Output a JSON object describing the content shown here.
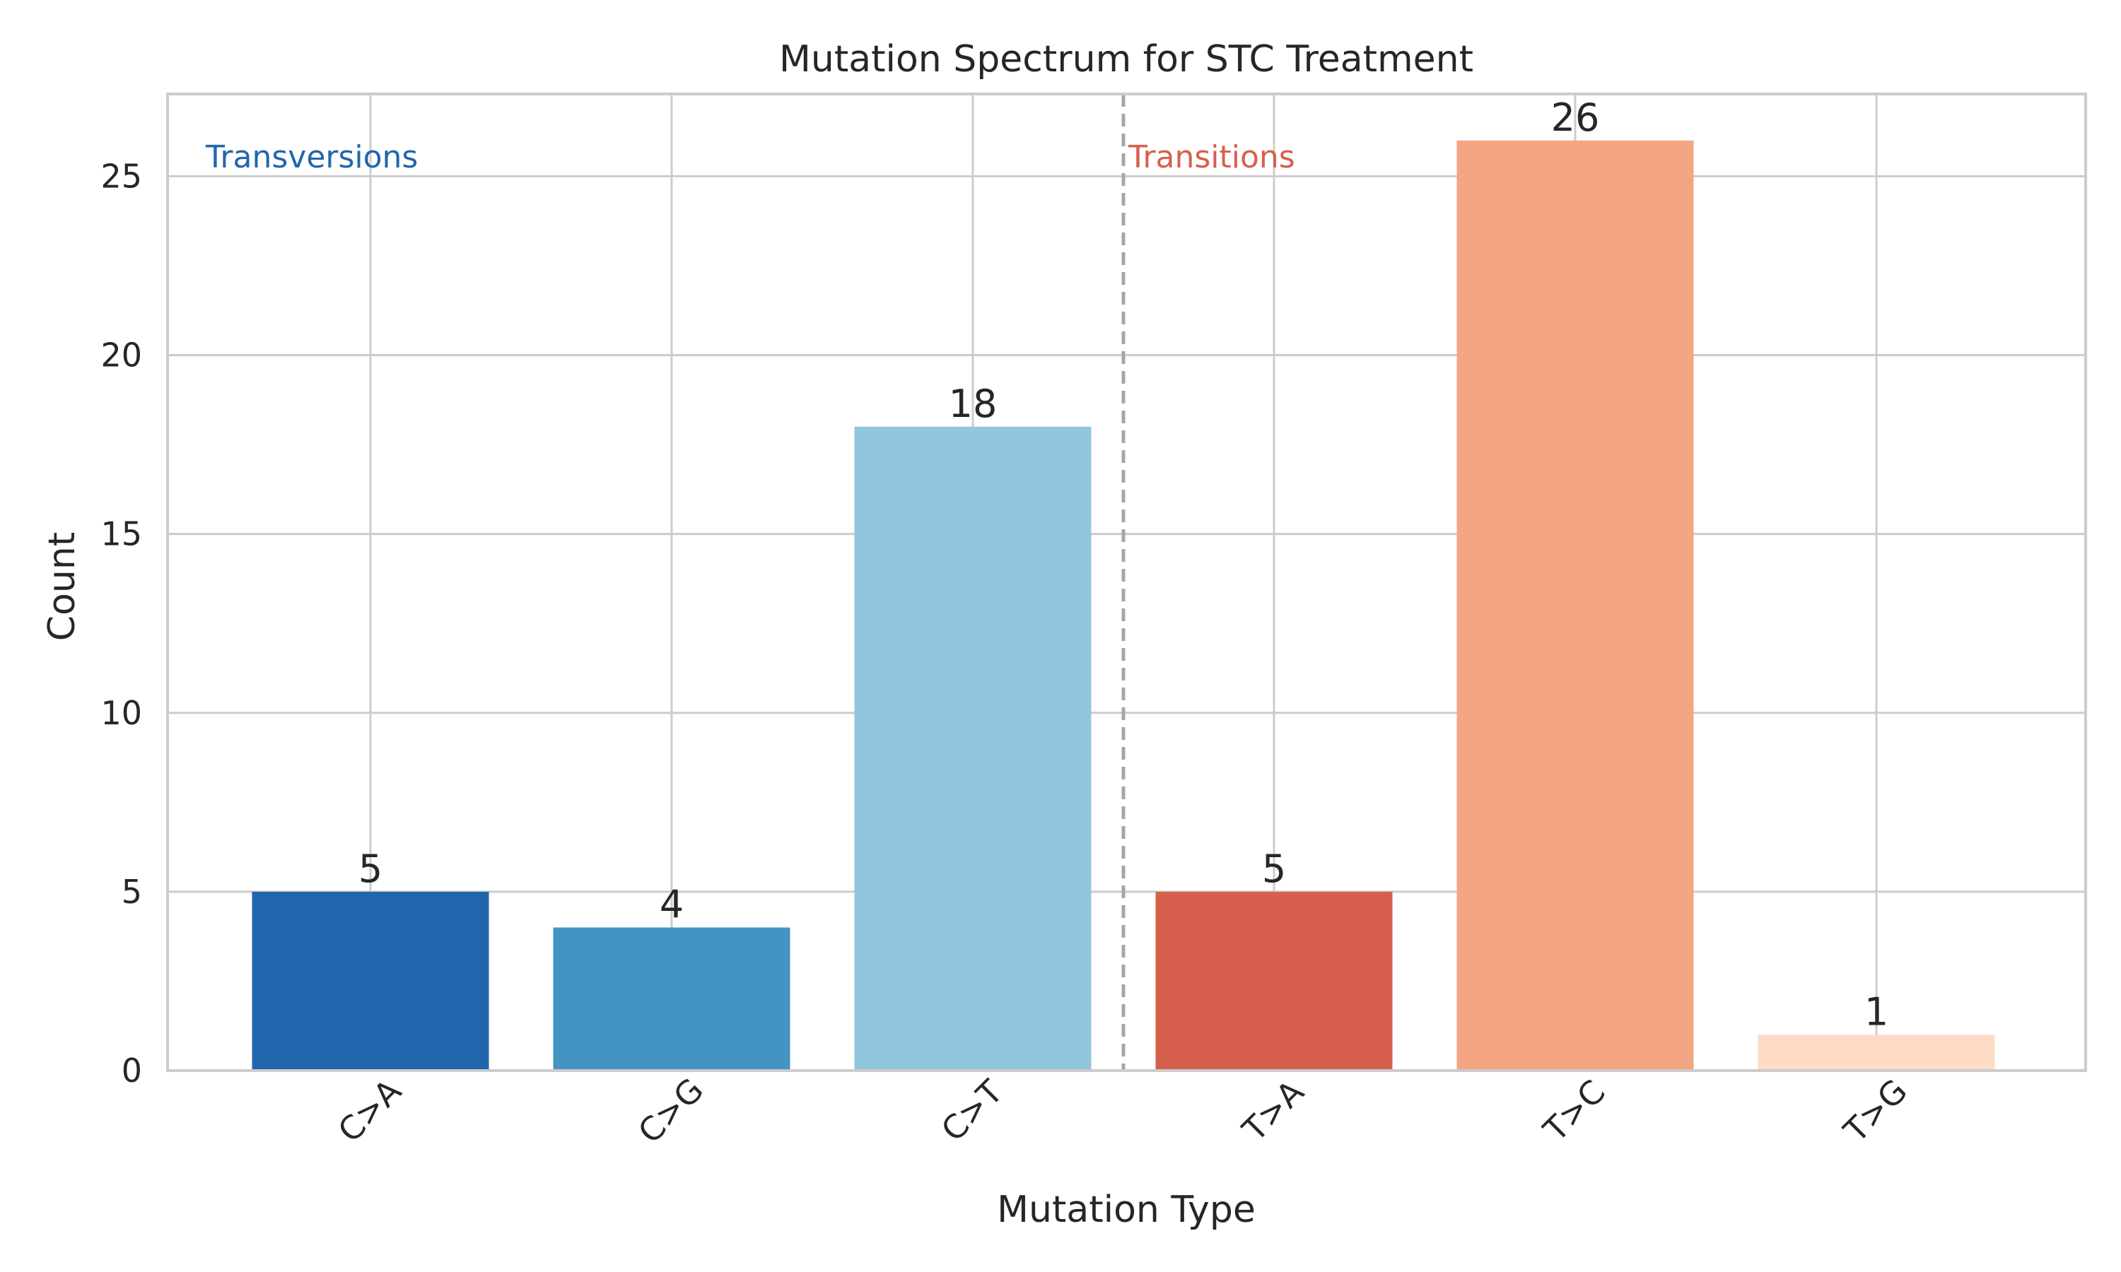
{
  "chart_data": {
    "type": "bar",
    "title": "Mutation Spectrum for STC Treatment",
    "xlabel": "Mutation Type",
    "ylabel": "Count",
    "categories": [
      "C>A",
      "C>G",
      "C>T",
      "T>A",
      "T>C",
      "T>G"
    ],
    "values": [
      5,
      4,
      18,
      5,
      26,
      1
    ],
    "value_labels": [
      "5",
      "4",
      "18",
      "5",
      "26",
      "1"
    ],
    "colors": [
      "#2166ac",
      "#4393c3",
      "#92c5de",
      "#d6604d",
      "#f4a582",
      "#fddbc7"
    ],
    "ylim": [
      0,
      27.3
    ],
    "yticks": [
      0,
      5,
      10,
      15,
      20,
      25
    ],
    "ytick_labels": [
      "0",
      "5",
      "10",
      "15",
      "20",
      "25"
    ],
    "grid": true,
    "group_labels": [
      {
        "text": "Transversions",
        "color": "#2166ac"
      },
      {
        "text": "Transitions",
        "color": "#d6604d"
      }
    ],
    "divider_after_index": 2,
    "divider_color": "#a6a6a6",
    "axes_color": "#cccccc",
    "grid_color": "#cccccc"
  }
}
